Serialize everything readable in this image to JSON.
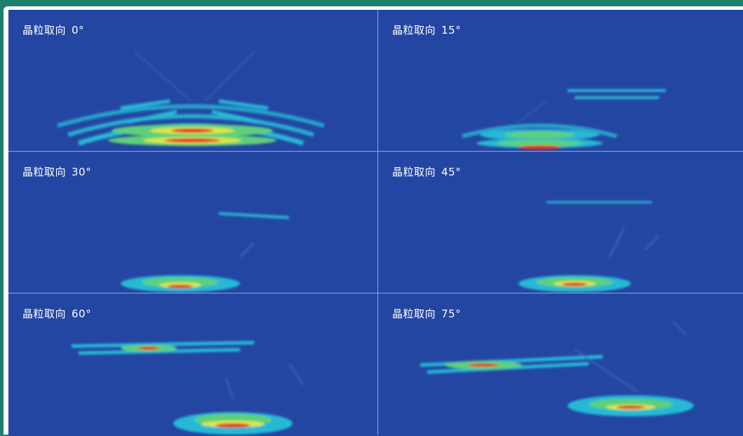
{
  "panels": [
    {
      "title": "晶粒取向",
      "angle": "0°"
    },
    {
      "title": "晶粒取向",
      "angle": "15°"
    },
    {
      "title": "晶粒取向",
      "angle": "30°"
    },
    {
      "title": "晶粒取向",
      "angle": "45°"
    },
    {
      "title": "晶粒取向",
      "angle": "60°"
    },
    {
      "title": "晶粒取向",
      "angle": "75°"
    }
  ],
  "colors": {
    "background": "#1d7f6c",
    "field": "#2446a3",
    "cyan": "#27b9d6",
    "green": "#5fd07a",
    "yellow": "#d9e64a",
    "red": "#e2322a"
  }
}
